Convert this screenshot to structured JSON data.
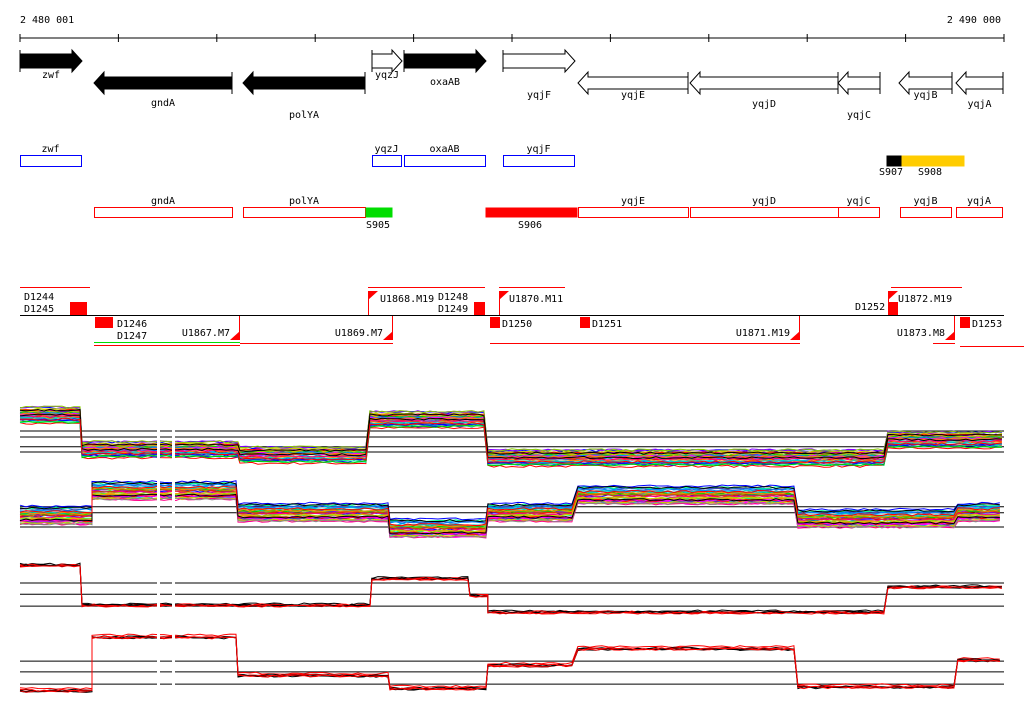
{
  "ruler": {
    "start_label": "2 480 001",
    "end_label": "2 490 000",
    "start_bp": 2480001,
    "end_bp": 2490000
  },
  "genes": [
    "zwf",
    "gndA",
    "polYA",
    "yqzJ",
    "oxaAB",
    "yqjF",
    "yqjE",
    "yqjD",
    "yqjC",
    "yqjB",
    "yqjA"
  ],
  "upregulated_track": {
    "labels": [
      "zwf",
      "yqzJ",
      "oxaAB",
      "yqjF"
    ]
  },
  "sigma_features": {
    "labels": [
      "S907",
      "S908"
    ],
    "colors": {
      "S907": "#000000",
      "S908": "#ffcc00"
    }
  },
  "downregulated_track": {
    "labels": [
      "gndA",
      "polYA",
      "yqjE",
      "yqjD",
      "yqjC",
      "yqjB",
      "yqjA"
    ],
    "features": [
      "S905",
      "S906"
    ],
    "colors": {
      "S905": "#00dd00",
      "S906": "#ff0000"
    }
  },
  "annotations": {
    "above": [
      "D1244",
      "D1245",
      "U1868.M19",
      "D1248",
      "D1249",
      "U1870.M11",
      "D1252",
      "U1872.M19"
    ],
    "below": [
      "D1246",
      "D1247",
      "U1867.M7",
      "U1869.M7",
      "D1250",
      "D1251",
      "U1871.M19",
      "U1873.M8",
      "D1253"
    ]
  },
  "expression_profiles": [
    {
      "name": "conditions-strand-plus",
      "segments": [
        [
          2480001,
          2480631,
          0.73
        ],
        [
          2480631,
          2482236,
          0.27
        ],
        [
          2482236,
          2483557,
          0.2
        ],
        [
          2483557,
          2484756,
          0.67
        ],
        [
          2484756,
          2488820,
          0.16
        ],
        [
          2488820,
          2490000,
          0.4
        ]
      ]
    },
    {
      "name": "conditions-strand-minus",
      "segments": [
        [
          2480001,
          2480733,
          0.4
        ],
        [
          2480733,
          2482216,
          0.73
        ],
        [
          2482216,
          2483760,
          0.44
        ],
        [
          2483760,
          2484756,
          0.23
        ],
        [
          2484756,
          2485670,
          0.44
        ],
        [
          2485670,
          2487906,
          0.67
        ],
        [
          2487906,
          2489531,
          0.36
        ],
        [
          2489531,
          2490000,
          0.44
        ]
      ]
    },
    {
      "name": "selected-strand-plus",
      "segments": [
        [
          2480001,
          2480631,
          0.86
        ],
        [
          2480631,
          2483577,
          0.29
        ],
        [
          2483577,
          2484573,
          0.67
        ],
        [
          2484573,
          2484756,
          0.43
        ],
        [
          2484756,
          2488820,
          0.19
        ],
        [
          2488820,
          2490000,
          0.55
        ]
      ]
    },
    {
      "name": "selected-strand-minus",
      "segments": [
        [
          2480001,
          2480733,
          0.14
        ],
        [
          2480733,
          2482216,
          0.88
        ],
        [
          2482216,
          2483760,
          0.35
        ],
        [
          2483760,
          2484756,
          0.17
        ],
        [
          2484756,
          2485670,
          0.49
        ],
        [
          2485670,
          2487906,
          0.72
        ],
        [
          2487906,
          2489531,
          0.19
        ],
        [
          2489531,
          2490000,
          0.56
        ]
      ]
    }
  ]
}
